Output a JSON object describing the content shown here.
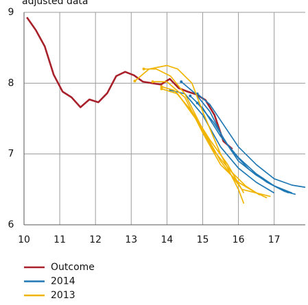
{
  "chart_data": {
    "type": "line",
    "subtitle": "adjusted data",
    "xlim": [
      10,
      17.87
    ],
    "xticks": [
      10,
      11,
      12,
      13,
      14,
      15,
      16,
      17
    ],
    "ylim": [
      6,
      9
    ],
    "yticks": [
      6,
      7,
      8,
      9
    ],
    "grid": true,
    "legend": "bottom",
    "series": [
      {
        "name": "Outcome",
        "color": "#a8202a",
        "lines": [
          {
            "x": [
              10.08,
              10.33,
              10.58,
              10.83,
              11.08,
              11.33,
              11.58,
              11.83,
              12.08,
              12.33,
              12.58,
              12.83,
              13.08,
              13.33,
              13.58,
              13.83,
              14.08,
              14.33,
              14.58,
              14.83,
              15.08,
              15.33,
              15.58,
              15.83
            ],
            "values": [
              8.93,
              8.75,
              8.52,
              8.12,
              7.88,
              7.8,
              7.66,
              7.77,
              7.73,
              7.86,
              8.1,
              8.16,
              8.11,
              8.02,
              8.0,
              7.98,
              8.06,
              7.93,
              7.88,
              7.84,
              7.76,
              7.55,
              7.18,
              7.07
            ]
          }
        ]
      },
      {
        "name": "2014",
        "color": "#1f78b4",
        "lines": [
          {
            "x": [
              14.1,
              14.5,
              15,
              15.5,
              16,
              16.5,
              17
            ],
            "values": [
              7.9,
              7.85,
              7.55,
              7.1,
              6.8,
              6.6,
              6.45
            ]
          },
          {
            "x": [
              14.4,
              14.8,
              15.2,
              15.6,
              16,
              16.5,
              17,
              17.4
            ],
            "values": [
              8.02,
              7.85,
              7.6,
              7.2,
              6.9,
              6.7,
              6.55,
              6.45
            ]
          },
          {
            "x": [
              14.65,
              15,
              15.5,
              16,
              16.5,
              17,
              17.5
            ],
            "values": [
              7.82,
              7.65,
              7.25,
              6.95,
              6.72,
              6.55,
              6.45
            ]
          },
          {
            "x": [
              14.85,
              15.2,
              15.6,
              16,
              16.5,
              17,
              17.5,
              17.87
            ],
            "values": [
              7.85,
              7.7,
              7.4,
              7.1,
              6.85,
              6.65,
              6.56,
              6.53
            ]
          },
          {
            "x": [
              14.85,
              15.3,
              15.8,
              16.3,
              16.8,
              17.3,
              17.6
            ],
            "values": [
              7.72,
              7.45,
              7.05,
              6.78,
              6.6,
              6.47,
              6.43
            ]
          }
        ]
      },
      {
        "name": "2013",
        "color": "#f0b400",
        "lines": [
          {
            "x": [
              13.1,
              13.5,
              14,
              14.3,
              14.7,
              15,
              15.5,
              16,
              16.15
            ],
            "values": [
              8.03,
              8.2,
              8.25,
              8.2,
              8.0,
              7.6,
              7.0,
              6.5,
              6.3
            ]
          },
          {
            "x": [
              13.35,
              13.7,
              14.1,
              14.5,
              15,
              15.5,
              16.1,
              16.9
            ],
            "values": [
              8.2,
              8.2,
              8.1,
              7.85,
              7.35,
              6.9,
              6.5,
              6.4
            ]
          },
          {
            "x": [
              13.6,
              14,
              14.5,
              15,
              15.5,
              16,
              16.5,
              16.8
            ],
            "values": [
              8.02,
              8.02,
              7.8,
              7.3,
              6.85,
              6.6,
              6.45,
              6.38
            ]
          },
          {
            "x": [
              13.85,
              14.3,
              14.8,
              15.3,
              15.8,
              16.2,
              16.6
            ],
            "values": [
              7.92,
              7.85,
              7.5,
              7.05,
              6.75,
              6.55,
              6.42
            ]
          },
          {
            "x": [
              13.85,
              14.2,
              14.7,
              15.2,
              15.7,
              16.15
            ],
            "values": [
              7.95,
              7.9,
              7.6,
              7.2,
              6.85,
              6.45
            ]
          }
        ]
      }
    ]
  }
}
